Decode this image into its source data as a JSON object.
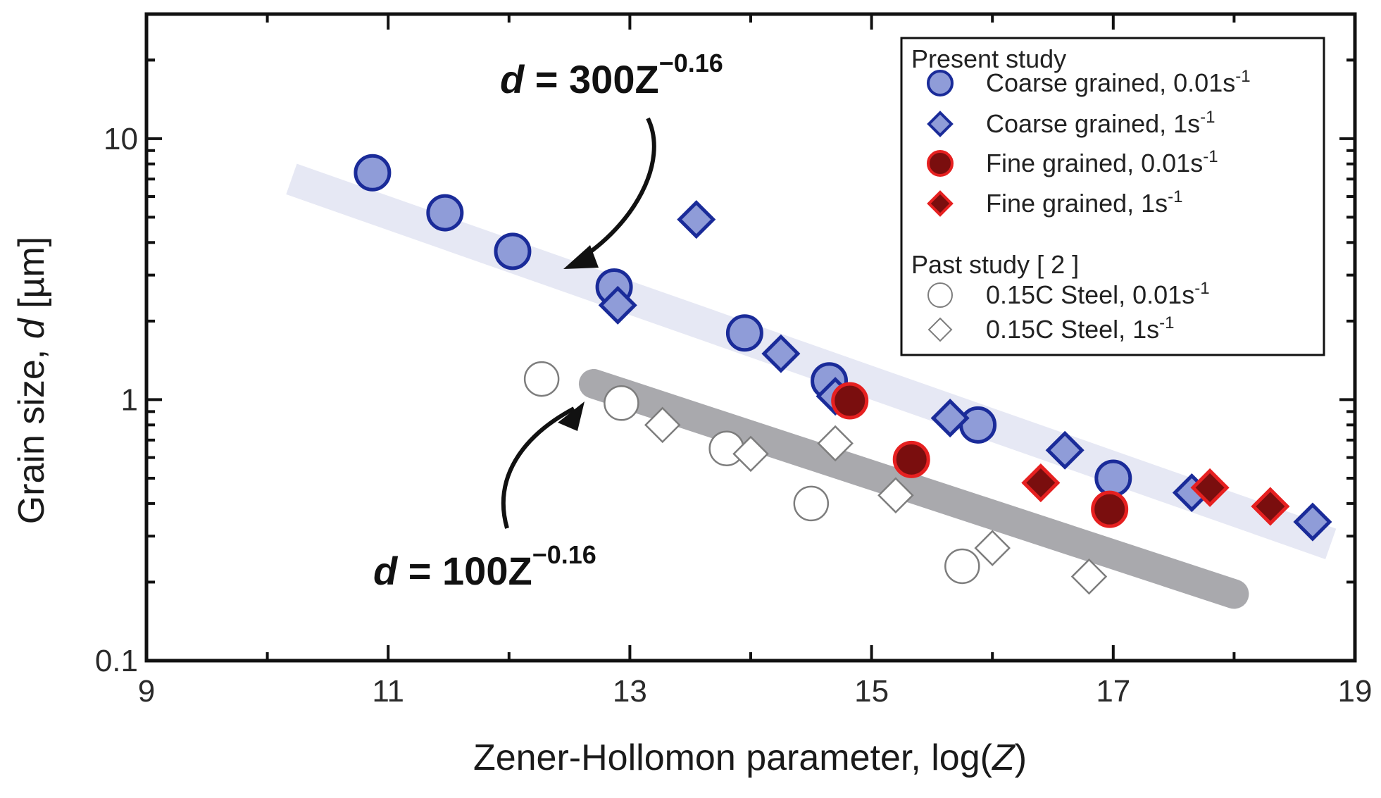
{
  "chart_data": {
    "type": "scatter",
    "xlabel": "Zener-Hollomon parameter, log(Z)",
    "xlabel_parts": {
      "prefix": "Zener-Hollomon parameter, log(",
      "var": "Z",
      "suffix": ")"
    },
    "ylabel": "Grain size, d [µm]",
    "ylabel_parts": {
      "prefix": "Grain size, ",
      "var": "d",
      "suffix": " [µm]"
    },
    "xlim": [
      9,
      19
    ],
    "ylim": [
      0.1,
      30
    ],
    "yscale": "log",
    "x_ticks": [
      9,
      11,
      13,
      15,
      17,
      19
    ],
    "x_tick_labels": [
      "9",
      "11",
      "13",
      "15",
      "17",
      "19"
    ],
    "y_ticks": [
      0.1,
      1,
      10
    ],
    "y_tick_labels": [
      "0.1",
      "1",
      "10"
    ],
    "grid": false,
    "legend": {
      "position": "top-right",
      "group1_title": "Present study",
      "group2_title": "Past study [ 2 ]"
    },
    "series": [
      {
        "name": "Coarse grained, 0.01s",
        "sup": "-1",
        "marker": "circle",
        "fill": "#8f9cd8",
        "stroke": "#1a2b99",
        "x": [
          10.87,
          11.47,
          12.03,
          12.87,
          13.95,
          14.65,
          15.88,
          17.0
        ],
        "y": [
          7.4,
          5.2,
          3.7,
          2.7,
          1.8,
          1.18,
          0.8,
          0.5
        ]
      },
      {
        "name": "Coarse grained, 1s",
        "sup": "-1",
        "marker": "diamond",
        "fill": "#8f9cd8",
        "stroke": "#1a2b99",
        "x": [
          13.55,
          12.9,
          14.25,
          14.7,
          15.65,
          16.6,
          17.65,
          18.65
        ],
        "y": [
          4.9,
          2.3,
          1.5,
          1.03,
          0.85,
          0.64,
          0.44,
          0.34
        ]
      },
      {
        "name": "Fine grained, 0.01s",
        "sup": "-1",
        "marker": "circle",
        "fill": "#7a0e0e",
        "stroke": "#e62020",
        "x": [
          14.82,
          15.33,
          16.97
        ],
        "y": [
          0.99,
          0.59,
          0.38
        ]
      },
      {
        "name": "Fine grained, 1s",
        "sup": "-1",
        "marker": "diamond",
        "fill": "#7a0e0e",
        "stroke": "#e62020",
        "x": [
          16.4,
          17.8,
          18.3
        ],
        "y": [
          0.48,
          0.46,
          0.39
        ]
      },
      {
        "name": "0.15C Steel, 0.01s",
        "sup": "-1",
        "marker": "circle",
        "fill": "#ffffff",
        "stroke": "#7d7d7d",
        "x": [
          12.27,
          12.93,
          13.8,
          14.5,
          15.75
        ],
        "y": [
          1.2,
          0.97,
          0.65,
          0.4,
          0.23
        ]
      },
      {
        "name": "0.15C Steel, 1s",
        "sup": "-1",
        "marker": "diamond",
        "fill": "#ffffff",
        "stroke": "#7d7d7d",
        "x": [
          13.27,
          14.0,
          14.7,
          15.2,
          16.0,
          16.8
        ],
        "y": [
          0.8,
          0.62,
          0.68,
          0.43,
          0.27,
          0.21
        ]
      }
    ],
    "fit_bands": [
      {
        "label": "300",
        "color": "#e6e8f4",
        "x": [
          10.2,
          18.8
        ],
        "y": [
          7.0,
          0.28
        ]
      },
      {
        "label": "100",
        "color": "#a9a9ad",
        "x": [
          12.7,
          18.0
        ],
        "y": [
          1.15,
          0.18
        ]
      }
    ],
    "annotations": [
      {
        "prefix": "d",
        "coeff": " = 300Z",
        "exp": "−0.16"
      },
      {
        "prefix": "d",
        "coeff": " = 100Z",
        "exp": "−0.16"
      }
    ]
  }
}
